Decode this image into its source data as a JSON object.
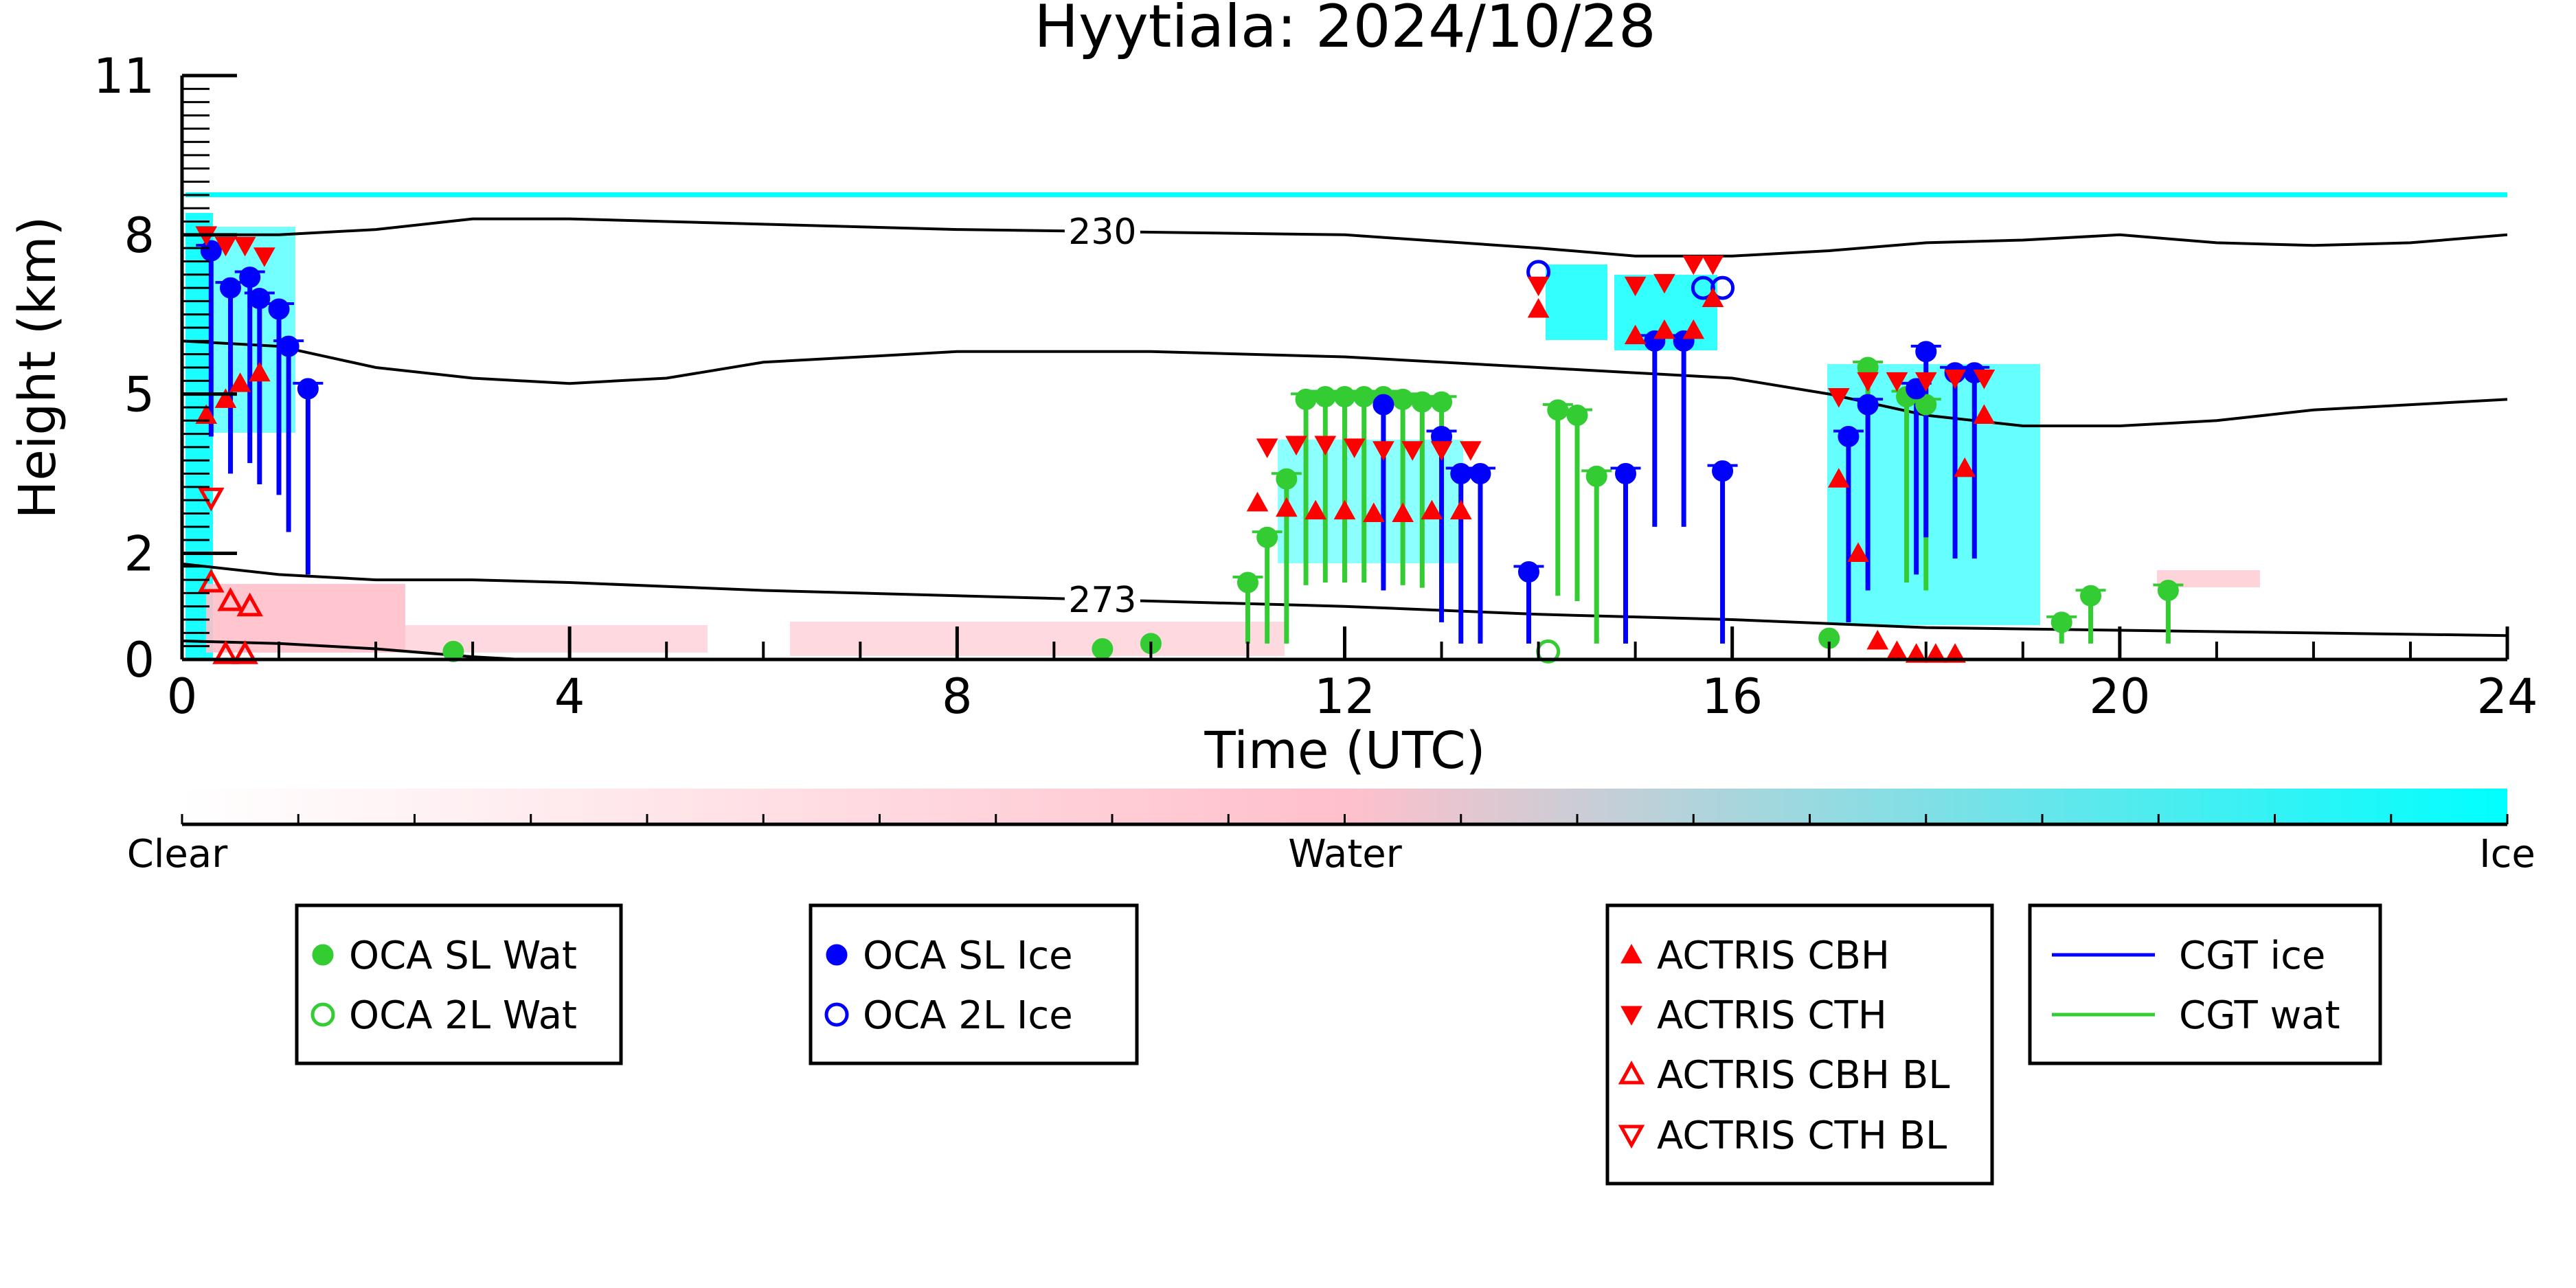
{
  "chart_data": {
    "type": "scatter",
    "title": "Hyytiala: 2024/10/28",
    "xlabel": "Time (UTC)",
    "ylabel": "Height (km)",
    "xlim": [
      0,
      24
    ],
    "ylim": [
      0,
      11
    ],
    "x_ticks": [
      0,
      4,
      8,
      12,
      16,
      20,
      24
    ],
    "y_ticks": [
      0,
      2,
      5,
      8,
      11
    ],
    "colorbar": {
      "labels": [
        "Clear",
        "Water",
        "Ice"
      ],
      "colors": [
        "#ffffff",
        "#ffc0cb",
        "#00ffff"
      ]
    },
    "contours": [
      {
        "label": "230",
        "label_x": 9.5,
        "points": [
          [
            0,
            8.0
          ],
          [
            1,
            8.0
          ],
          [
            2,
            8.1
          ],
          [
            3,
            8.3
          ],
          [
            4,
            8.3
          ],
          [
            6,
            8.2
          ],
          [
            8,
            8.1
          ],
          [
            10,
            8.05
          ],
          [
            12,
            8.0
          ],
          [
            14,
            7.75
          ],
          [
            15,
            7.6
          ],
          [
            16,
            7.6
          ],
          [
            17,
            7.7
          ],
          [
            18,
            7.85
          ],
          [
            19,
            7.9
          ],
          [
            20,
            8.0
          ],
          [
            21,
            7.85
          ],
          [
            22,
            7.8
          ],
          [
            23,
            7.85
          ],
          [
            24,
            8.0
          ]
        ]
      },
      {
        "label": "",
        "label_x": null,
        "points": [
          [
            0,
            6.0
          ],
          [
            1,
            5.9
          ],
          [
            2,
            5.5
          ],
          [
            3,
            5.3
          ],
          [
            4,
            5.2
          ],
          [
            5,
            5.3
          ],
          [
            6,
            5.6
          ],
          [
            8,
            5.8
          ],
          [
            10,
            5.8
          ],
          [
            12,
            5.7
          ],
          [
            14,
            5.5
          ],
          [
            15,
            5.4
          ],
          [
            16,
            5.3
          ],
          [
            17,
            5.0
          ],
          [
            18,
            4.6
          ],
          [
            19,
            4.4
          ],
          [
            20,
            4.4
          ],
          [
            21,
            4.5
          ],
          [
            22,
            4.7
          ],
          [
            24,
            4.9
          ]
        ]
      },
      {
        "label": "273",
        "label_x": 9.5,
        "points": [
          [
            0,
            1.8
          ],
          [
            1,
            1.6
          ],
          [
            2,
            1.5
          ],
          [
            3,
            1.5
          ],
          [
            4,
            1.45
          ],
          [
            6,
            1.3
          ],
          [
            8,
            1.2
          ],
          [
            10,
            1.1
          ],
          [
            12,
            1.0
          ],
          [
            14,
            0.85
          ],
          [
            16,
            0.75
          ],
          [
            18,
            0.6
          ],
          [
            20,
            0.55
          ],
          [
            22,
            0.5
          ],
          [
            24,
            0.45
          ]
        ]
      },
      {
        "label": "",
        "label_x": null,
        "points": [
          [
            0,
            0.35
          ],
          [
            1,
            0.3
          ],
          [
            2,
            0.2
          ],
          [
            3,
            0.05
          ],
          [
            3.5,
            0.0
          ]
        ]
      }
    ],
    "series": [
      {
        "name": "OCA SL Wat",
        "color": "#33cc33",
        "marker": "circle",
        "filled": true,
        "points": [
          [
            2.8,
            0.15
          ],
          [
            9.5,
            0.2
          ],
          [
            10,
            0.3
          ],
          [
            11,
            1.45
          ],
          [
            11.2,
            2.3
          ],
          [
            11.4,
            3.4
          ],
          [
            11.6,
            4.9
          ],
          [
            11.8,
            4.95
          ],
          [
            12,
            4.95
          ],
          [
            12.2,
            4.95
          ],
          [
            12.4,
            4.95
          ],
          [
            12.6,
            4.9
          ],
          [
            12.8,
            4.85
          ],
          [
            13,
            4.85
          ],
          [
            14.2,
            4.7
          ],
          [
            14.4,
            4.6
          ],
          [
            14.6,
            3.45
          ],
          [
            17,
            0.4
          ],
          [
            17.4,
            5.5
          ],
          [
            17.8,
            4.95
          ],
          [
            18,
            4.8
          ],
          [
            19.4,
            0.7
          ],
          [
            19.7,
            1.2
          ],
          [
            20.5,
            1.3
          ]
        ]
      },
      {
        "name": "OCA 2L Wat",
        "color": "#33cc33",
        "marker": "circle",
        "filled": false,
        "points": [
          [
            14.1,
            0.15
          ]
        ]
      },
      {
        "name": "OCA SL Ice",
        "color": "#0000ff",
        "marker": "circle",
        "filled": true,
        "points": [
          [
            0.3,
            7.7
          ],
          [
            0.5,
            7.0
          ],
          [
            0.7,
            7.2
          ],
          [
            0.8,
            6.8
          ],
          [
            1.0,
            6.6
          ],
          [
            1.1,
            5.9
          ],
          [
            1.3,
            5.1
          ],
          [
            12.4,
            4.8
          ],
          [
            13.0,
            4.2
          ],
          [
            13.2,
            3.5
          ],
          [
            13.4,
            3.5
          ],
          [
            13.9,
            1.65
          ],
          [
            14.9,
            3.5
          ],
          [
            15.2,
            6.0
          ],
          [
            15.5,
            6.0
          ],
          [
            15.9,
            3.55
          ],
          [
            17.2,
            4.2
          ],
          [
            17.4,
            4.8
          ],
          [
            17.9,
            5.1
          ],
          [
            18.0,
            5.8
          ],
          [
            18.3,
            5.4
          ],
          [
            18.5,
            5.4
          ]
        ]
      },
      {
        "name": "OCA 2L Ice",
        "color": "#0000ff",
        "marker": "circle",
        "filled": false,
        "points": [
          [
            14.0,
            7.3
          ],
          [
            15.7,
            7.0
          ],
          [
            15.9,
            7.0
          ]
        ]
      },
      {
        "name": "ACTRIS CBH",
        "color": "#ff0000",
        "marker": "triangle-up",
        "filled": true,
        "points": [
          [
            0.25,
            4.6
          ],
          [
            0.45,
            4.9
          ],
          [
            0.6,
            5.2
          ],
          [
            0.8,
            5.4
          ],
          [
            11.1,
            2.95
          ],
          [
            11.4,
            2.85
          ],
          [
            11.7,
            2.8
          ],
          [
            12,
            2.8
          ],
          [
            12.3,
            2.75
          ],
          [
            12.6,
            2.75
          ],
          [
            12.9,
            2.8
          ],
          [
            13.2,
            2.8
          ],
          [
            14.0,
            6.6
          ],
          [
            15.0,
            6.1
          ],
          [
            15.3,
            6.2
          ],
          [
            15.6,
            6.2
          ],
          [
            15.8,
            6.8
          ],
          [
            17.1,
            3.4
          ],
          [
            17.3,
            2.0
          ],
          [
            17.5,
            0.35
          ],
          [
            17.7,
            0.15
          ],
          [
            17.9,
            0.1
          ],
          [
            18.1,
            0.1
          ],
          [
            18.3,
            0.1
          ],
          [
            18.4,
            3.6
          ],
          [
            18.6,
            4.6
          ]
        ]
      },
      {
        "name": "ACTRIS CTH",
        "color": "#ff0000",
        "marker": "triangle-down",
        "filled": true,
        "points": [
          [
            0.25,
            8.0
          ],
          [
            0.45,
            7.8
          ],
          [
            0.65,
            7.8
          ],
          [
            0.85,
            7.6
          ],
          [
            11.2,
            4.0
          ],
          [
            11.5,
            4.05
          ],
          [
            11.8,
            4.05
          ],
          [
            12.1,
            4.0
          ],
          [
            12.4,
            3.95
          ],
          [
            12.7,
            3.95
          ],
          [
            13,
            3.95
          ],
          [
            13.3,
            3.95
          ],
          [
            14.0,
            7.05
          ],
          [
            15.0,
            7.05
          ],
          [
            15.3,
            7.1
          ],
          [
            15.6,
            7.45
          ],
          [
            15.8,
            7.45
          ],
          [
            17.1,
            4.95
          ],
          [
            17.4,
            5.25
          ],
          [
            17.7,
            5.25
          ],
          [
            18,
            5.25
          ],
          [
            18.3,
            5.3
          ],
          [
            18.6,
            5.3
          ]
        ]
      },
      {
        "name": "ACTRIS CBH BL",
        "color": "#ff0000",
        "marker": "triangle-up",
        "filled": false,
        "points": [
          [
            0.3,
            1.45
          ],
          [
            0.5,
            1.1
          ],
          [
            0.7,
            1.0
          ],
          [
            0.45,
            0.1
          ],
          [
            0.65,
            0.1
          ]
        ]
      },
      {
        "name": "ACTRIS CTH BL",
        "color": "#ff0000",
        "marker": "triangle-down",
        "filled": false,
        "points": [
          [
            0.3,
            3.05
          ]
        ]
      },
      {
        "name": "CGT ice",
        "color": "#0000ff",
        "marker": "line",
        "filled": false,
        "points": []
      },
      {
        "name": "CGT wat",
        "color": "#33cc33",
        "marker": "line",
        "filled": false,
        "points": []
      }
    ],
    "legend_placement": "below",
    "grid": false
  }
}
